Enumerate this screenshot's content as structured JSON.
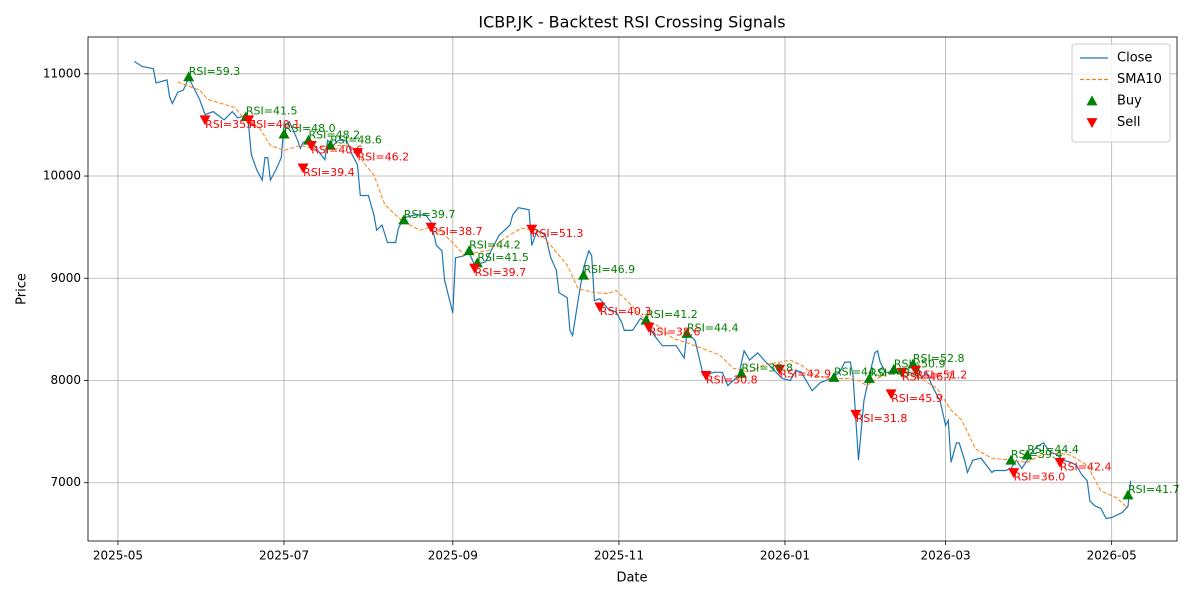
{
  "chart_data": {
    "type": "line",
    "title": "ICBP.JK - Backtest RSI Crossing Signals",
    "x_label": "Date",
    "y_label": "Price",
    "xlim": [
      "2025-04-20",
      "2026-05-25"
    ],
    "xticks": [
      {
        "value": "2025-05-01",
        "label": "2025-05"
      },
      {
        "value": "2025-07-01",
        "label": "2025-07"
      },
      {
        "value": "2025-09-01",
        "label": "2025-09"
      },
      {
        "value": "2025-11-01",
        "label": "2025-11"
      },
      {
        "value": "2026-01-01",
        "label": "2026-01"
      },
      {
        "value": "2026-03-01",
        "label": "2026-03"
      },
      {
        "value": "2026-05-01",
        "label": "2026-05"
      }
    ],
    "ylim": [
      6430,
      11360
    ],
    "yticks": [
      7000,
      8000,
      9000,
      10000,
      11000
    ],
    "grid": true,
    "legend": "upper right",
    "series": [
      {
        "name": "Close",
        "color": "#1f77b4",
        "style": "solid",
        "x": [
          "2025-05-07",
          "2025-05-10",
          "2025-05-14",
          "2025-05-15",
          "2025-05-19",
          "2025-05-20",
          "2025-05-21",
          "2025-05-23",
          "2025-05-25",
          "2025-05-27",
          "2025-05-31",
          "2025-06-02",
          "2025-06-05",
          "2025-06-09",
          "2025-06-12",
          "2025-06-14",
          "2025-06-17",
          "2025-06-18",
          "2025-06-19",
          "2025-06-21",
          "2025-06-23",
          "2025-06-24",
          "2025-06-25",
          "2025-06-26",
          "2025-06-28",
          "2025-06-30",
          "2025-07-01",
          "2025-07-03",
          "2025-07-06",
          "2025-07-07",
          "2025-07-08",
          "2025-07-10",
          "2025-07-12",
          "2025-07-14",
          "2025-07-16",
          "2025-07-17",
          "2025-07-19",
          "2025-07-21",
          "2025-07-24",
          "2025-07-26",
          "2025-07-28",
          "2025-07-29",
          "2025-08-01",
          "2025-08-03",
          "2025-08-04",
          "2025-08-06",
          "2025-08-08",
          "2025-08-11",
          "2025-08-12",
          "2025-08-14",
          "2025-08-18",
          "2025-08-22",
          "2025-08-24",
          "2025-08-26",
          "2025-08-28",
          "2025-08-29",
          "2025-09-01",
          "2025-09-02",
          "2025-09-05",
          "2025-09-07",
          "2025-09-09",
          "2025-09-13",
          "2025-09-16",
          "2025-09-18",
          "2025-09-22",
          "2025-09-23",
          "2025-09-25",
          "2025-09-29",
          "2025-09-30",
          "2025-10-02",
          "2025-10-05",
          "2025-10-07",
          "2025-10-09",
          "2025-10-10",
          "2025-10-13",
          "2025-10-14",
          "2025-10-15",
          "2025-10-17",
          "2025-10-19",
          "2025-10-21",
          "2025-10-22",
          "2025-10-23",
          "2025-10-25",
          "2025-10-28",
          "2025-10-31",
          "2025-11-02",
          "2025-11-03",
          "2025-11-06",
          "2025-11-09",
          "2025-11-12",
          "2025-11-14",
          "2025-11-17",
          "2025-11-22",
          "2025-11-25",
          "2025-11-26",
          "2025-11-29",
          "2025-12-02",
          "2025-12-06",
          "2025-12-09",
          "2025-12-11",
          "2025-12-15",
          "2025-12-17",
          "2025-12-19",
          "2025-12-22",
          "2025-12-25",
          "2025-12-28",
          "2025-12-31",
          "2026-01-03",
          "2026-01-05",
          "2026-01-07",
          "2026-01-11",
          "2026-01-14",
          "2026-01-18",
          "2026-01-21",
          "2026-01-23",
          "2026-01-25",
          "2026-01-26",
          "2026-01-28",
          "2026-01-30",
          "2026-02-01",
          "2026-02-03",
          "2026-02-04",
          "2026-02-05",
          "2026-02-07",
          "2026-02-10",
          "2026-02-13",
          "2026-02-16",
          "2026-02-18",
          "2026-02-20",
          "2026-02-22",
          "2026-02-24",
          "2026-02-26",
          "2026-02-27",
          "2026-03-01",
          "2026-03-02",
          "2026-03-03",
          "2026-03-05",
          "2026-03-06",
          "2026-03-08",
          "2026-03-09",
          "2026-03-11",
          "2026-03-14",
          "2026-03-16",
          "2026-03-18",
          "2026-03-19",
          "2026-03-23",
          "2026-03-25",
          "2026-03-27",
          "2026-03-29",
          "2026-03-31",
          "2026-04-02",
          "2026-04-04",
          "2026-04-06",
          "2026-04-08",
          "2026-04-11",
          "2026-04-13",
          "2026-04-16",
          "2026-04-18",
          "2026-04-20",
          "2026-04-22",
          "2026-04-23",
          "2026-04-25",
          "2026-04-27",
          "2026-04-29",
          "2026-05-01",
          "2026-05-05",
          "2026-05-07",
          "2026-05-08"
        ],
        "values": [
          11120,
          11070,
          11050,
          10910,
          10940,
          10770,
          10710,
          10820,
          10840,
          10960,
          10750,
          10600,
          10630,
          10550,
          10630,
          10570,
          10590,
          10500,
          10210,
          10060,
          9960,
          10180,
          10180,
          9960,
          10060,
          10180,
          10500,
          10530,
          10350,
          10270,
          10330,
          10350,
          10300,
          10230,
          10160,
          10350,
          10300,
          10350,
          10350,
          10210,
          10110,
          9810,
          9810,
          9620,
          9470,
          9520,
          9350,
          9350,
          9490,
          9590,
          9620,
          9620,
          9550,
          9320,
          9270,
          8980,
          8660,
          9200,
          9220,
          9250,
          9130,
          9160,
          9320,
          9420,
          9520,
          9620,
          9690,
          9670,
          9320,
          9470,
          9420,
          9200,
          9080,
          8860,
          8810,
          8490,
          8440,
          8780,
          9100,
          9270,
          9220,
          8780,
          8800,
          8700,
          8670,
          8570,
          8490,
          8490,
          8610,
          8540,
          8440,
          8340,
          8340,
          8220,
          8470,
          8390,
          8050,
          8080,
          8080,
          7950,
          8050,
          8290,
          8200,
          8270,
          8180,
          8100,
          8020,
          8000,
          8100,
          8080,
          7900,
          7980,
          8020,
          8080,
          8180,
          8180,
          8050,
          7220,
          7800,
          8050,
          8270,
          8290,
          8180,
          8080,
          8080,
          8080,
          8080,
          8050,
          8020,
          8080,
          7950,
          7850,
          7800,
          7560,
          7610,
          7200,
          7390,
          7390,
          7220,
          7100,
          7220,
          7240,
          7170,
          7100,
          7120,
          7120,
          7140,
          7220,
          7140,
          7220,
          7310,
          7360,
          7390,
          7310,
          7270,
          7220,
          7200,
          7170,
          7080,
          7020,
          6820,
          6770,
          6750,
          6650,
          6660,
          6710,
          6770,
          7020
        ]
      },
      {
        "name": "SMA10",
        "color": "#ff7f0e",
        "style": "dashed",
        "x": [
          "2025-05-23",
          "2025-05-27",
          "2025-05-31",
          "2025-06-03",
          "2025-06-08",
          "2025-06-13",
          "2025-06-16",
          "2025-06-22",
          "2025-06-26",
          "2025-07-01",
          "2025-07-07",
          "2025-07-12",
          "2025-07-18",
          "2025-07-24",
          "2025-07-27",
          "2025-07-30",
          "2025-08-03",
          "2025-08-07",
          "2025-08-11",
          "2025-08-14",
          "2025-08-20",
          "2025-08-24",
          "2025-08-28",
          "2025-09-02",
          "2025-09-05",
          "2025-09-09",
          "2025-09-14",
          "2025-09-20",
          "2025-09-26",
          "2025-10-02",
          "2025-10-07",
          "2025-10-13",
          "2025-10-17",
          "2025-10-23",
          "2025-10-28",
          "2025-10-31",
          "2025-11-04",
          "2025-11-10",
          "2025-11-15",
          "2025-11-21",
          "2025-11-26",
          "2025-12-02",
          "2025-12-08",
          "2025-12-13",
          "2025-12-19",
          "2025-12-24",
          "2025-12-30",
          "2026-01-03",
          "2026-01-07",
          "2026-01-12",
          "2026-01-18",
          "2026-01-24",
          "2026-01-28",
          "2026-01-31",
          "2026-02-04",
          "2026-02-09",
          "2026-02-15",
          "2026-02-20",
          "2026-02-26",
          "2026-03-03",
          "2026-03-07",
          "2026-03-12",
          "2026-03-18",
          "2026-03-25",
          "2026-03-31",
          "2026-04-05",
          "2026-04-11",
          "2026-04-16",
          "2026-04-22",
          "2026-04-27",
          "2026-05-03",
          "2026-05-07"
        ],
        "values": [
          10920,
          10880,
          10840,
          10750,
          10710,
          10670,
          10570,
          10470,
          10300,
          10250,
          10300,
          10270,
          10300,
          10300,
          10270,
          10140,
          10010,
          9720,
          9620,
          9550,
          9470,
          9500,
          9450,
          9320,
          9230,
          9250,
          9270,
          9390,
          9490,
          9470,
          9320,
          9130,
          8900,
          8860,
          8850,
          8880,
          8780,
          8610,
          8540,
          8410,
          8370,
          8310,
          8250,
          8120,
          8080,
          8150,
          8180,
          8200,
          8150,
          8050,
          8020,
          8020,
          8000,
          7950,
          8020,
          8080,
          8080,
          8020,
          7920,
          7710,
          7610,
          7330,
          7240,
          7220,
          7200,
          7270,
          7290,
          7270,
          7170,
          6920,
          6850,
          6750
        ]
      },
      {
        "name": "Buy",
        "color": "#008000",
        "style": "marker",
        "marker": "up",
        "x": [
          "2025-05-27",
          "2025-06-17",
          "2025-07-01",
          "2025-07-10",
          "2025-07-18",
          "2025-08-14",
          "2025-09-07",
          "2025-09-10",
          "2025-10-19",
          "2025-11-11",
          "2025-11-26",
          "2025-12-16",
          "2026-01-19",
          "2026-02-01",
          "2026-02-10",
          "2026-02-17",
          "2026-03-25",
          "2026-03-31",
          "2026-05-07"
        ],
        "values": [
          10970,
          10580,
          10410,
          10350,
          10300,
          9570,
          9270,
          9150,
          9030,
          8590,
          8460,
          8070,
          8030,
          8020,
          8110,
          8160,
          7220,
          7270,
          6880
        ],
        "annotations": [
          "RSI=59.3",
          "RSI=41.5",
          "RSI=48.0",
          "RSI=48.2",
          "RSI=48.6",
          "RSI=39.7",
          "RSI=44.2",
          "RSI=41.5",
          "RSI=46.9",
          "RSI=41.2",
          "RSI=44.4",
          "RSI=38.8",
          "RSI=44.0",
          "RSI=43.9",
          "RSI=50.9",
          "RSI=52.8",
          "RSI=39.4",
          "RSI=44.4",
          "RSI=41.7"
        ]
      },
      {
        "name": "Sell",
        "color": "#ff0000",
        "style": "marker",
        "marker": "down",
        "x": [
          "2025-06-02",
          "2025-06-18",
          "2025-07-08",
          "2025-07-11",
          "2025-07-28",
          "2025-08-24",
          "2025-09-09",
          "2025-09-30",
          "2025-10-25",
          "2025-11-12",
          "2025-12-03",
          "2025-12-30",
          "2026-01-27",
          "2026-02-09",
          "2026-02-13",
          "2026-02-18",
          "2026-03-26",
          "2026-04-12"
        ],
        "values": [
          10550,
          10550,
          10080,
          10300,
          10230,
          9500,
          9100,
          9480,
          8720,
          8520,
          8050,
          8110,
          7670,
          7870,
          8080,
          8100,
          7100,
          7200
        ],
        "annotations": [
          "RSI=35.4",
          "RSI=40.1",
          "RSI=39.4",
          "RSI=40.6",
          "RSI=46.2",
          "RSI=38.7",
          "RSI=39.7",
          "RSI=51.3",
          "RSI=40.3",
          "RSI=38.6",
          "RSI=30.8",
          "RSI=42.9",
          "RSI=31.8",
          "RSI=45.9",
          "RSI=46.7",
          "RSI=51.2",
          "RSI=36.0",
          "RSI=42.4"
        ]
      }
    ]
  }
}
